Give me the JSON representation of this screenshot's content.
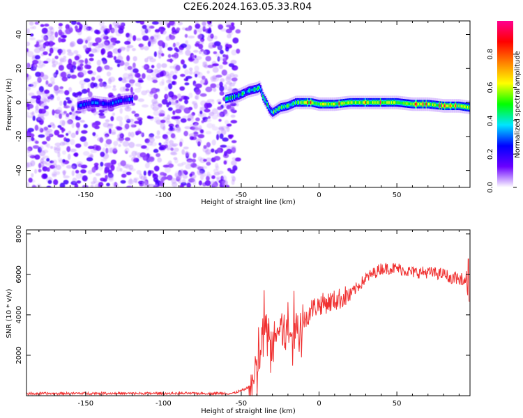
{
  "figure": {
    "title": "C2E6.2024.163.05.33.R04"
  },
  "chart_data": [
    {
      "type": "heatmap",
      "xlabel": "Height of straight line (km)",
      "ylabel": "Frequency (Hz)",
      "xlim": [
        -188,
        97
      ],
      "ylim": [
        -50,
        48
      ],
      "xticks": [
        -150,
        -100,
        -50,
        0,
        50
      ],
      "yticks": [
        -40,
        -20,
        0,
        20,
        40
      ],
      "colorbar": {
        "label": "Normalized spectral amplitude",
        "range": [
          0,
          1
        ],
        "ticks": [
          "0.0",
          "0.2",
          "0.4",
          "0.6",
          "0.8"
        ],
        "colors": [
          "#ffffff",
          "#6a00ff",
          "#0000ff",
          "#00e5ff",
          "#00ff00",
          "#ffff00",
          "#ff8000",
          "#ff0000",
          "#ff0090"
        ]
      },
      "noise_region_x": [
        -188,
        -52
      ],
      "ridge": {
        "x": [
          -155,
          -145,
          -135,
          -128,
          -120,
          -60,
          -52,
          -45,
          -40,
          -38,
          -36,
          -34,
          -32,
          -30,
          -25,
          -20,
          -15,
          -10,
          -5,
          0,
          10,
          20,
          30,
          40,
          50,
          60,
          70,
          80,
          90,
          97
        ],
        "y": [
          -2,
          0,
          -1,
          1,
          2,
          2,
          4,
          7,
          8,
          9,
          3,
          0,
          -4,
          -6,
          -3,
          -2,
          0,
          0,
          0,
          -1,
          -1,
          0,
          0,
          0,
          0,
          -1,
          -1,
          -2,
          -2,
          -3
        ]
      }
    },
    {
      "type": "line",
      "xlabel": "Height of straight line (km)",
      "ylabel": "SNR (10 * v/v)",
      "xlim": [
        -188,
        97
      ],
      "ylim": [
        0,
        8200
      ],
      "xticks": [
        -150,
        -100,
        -50,
        0,
        50
      ],
      "yticks": [
        2000,
        4000,
        6000,
        8000
      ],
      "color": "#f03030",
      "series_trend": {
        "x": [
          -188,
          -150,
          -100,
          -55,
          -48,
          -42,
          -38,
          -35,
          -32,
          -28,
          -25,
          -20,
          -15,
          -10,
          -5,
          0,
          10,
          20,
          30,
          40,
          50,
          60,
          70,
          80,
          90,
          97
        ],
        "y": [
          100,
          120,
          110,
          120,
          300,
          600,
          2000,
          3500,
          2500,
          2800,
          3500,
          3000,
          3200,
          3600,
          4300,
          4500,
          4700,
          5000,
          5800,
          6300,
          6300,
          6100,
          6100,
          6000,
          5700,
          6000
        ]
      }
    }
  ]
}
